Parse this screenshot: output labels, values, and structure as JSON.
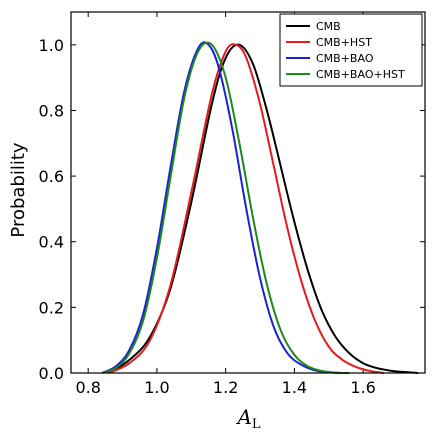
{
  "chart_data": {
    "type": "line",
    "ylabel": "Probability",
    "xlabel_main": "A",
    "xlabel_sub": "L",
    "xlim": [
      0.75,
      1.78
    ],
    "ylim": [
      0.0,
      1.1
    ],
    "x_ticks": [
      0.8,
      1.0,
      1.2,
      1.4,
      1.6
    ],
    "x_tick_labels": [
      "0.8",
      "1.0",
      "1.2",
      "1.4",
      "1.6"
    ],
    "y_ticks": [
      0.0,
      0.2,
      0.4,
      0.6,
      0.8,
      1.0
    ],
    "y_tick_labels": [
      "0.0",
      "0.2",
      "0.4",
      "0.6",
      "0.8",
      "1.0"
    ],
    "legend_position": "top-right",
    "series": [
      {
        "name": "CMB",
        "color": "#000000",
        "x": [
          0.86,
          0.92,
          0.98,
          1.04,
          1.1,
          1.16,
          1.2,
          1.24,
          1.28,
          1.32,
          1.36,
          1.4,
          1.44,
          1.48,
          1.52,
          1.56,
          1.6,
          1.64,
          1.68,
          1.72,
          1.76
        ],
        "y": [
          0.0,
          0.04,
          0.11,
          0.26,
          0.52,
          0.82,
          0.96,
          1.0,
          0.94,
          0.8,
          0.63,
          0.46,
          0.31,
          0.19,
          0.11,
          0.06,
          0.03,
          0.015,
          0.007,
          0.003,
          0.0
        ]
      },
      {
        "name": "CMB+HST",
        "color": "#e41a1c",
        "x": [
          0.86,
          0.92,
          0.98,
          1.04,
          1.1,
          1.16,
          1.2,
          1.23,
          1.26,
          1.3,
          1.34,
          1.38,
          1.42,
          1.46,
          1.5,
          1.54,
          1.58,
          1.62,
          1.66
        ],
        "y": [
          0.0,
          0.03,
          0.1,
          0.27,
          0.55,
          0.85,
          0.98,
          1.0,
          0.96,
          0.82,
          0.63,
          0.44,
          0.28,
          0.16,
          0.08,
          0.04,
          0.018,
          0.006,
          0.0
        ]
      },
      {
        "name": "CMB+BAO",
        "color": "#1f1fd6",
        "x": [
          0.84,
          0.88,
          0.92,
          0.96,
          1.0,
          1.04,
          1.08,
          1.12,
          1.15,
          1.18,
          1.22,
          1.26,
          1.3,
          1.34,
          1.38,
          1.42,
          1.46,
          1.5,
          1.54
        ],
        "y": [
          0.0,
          0.02,
          0.07,
          0.18,
          0.38,
          0.63,
          0.86,
          0.99,
          1.0,
          0.93,
          0.74,
          0.5,
          0.29,
          0.14,
          0.06,
          0.025,
          0.008,
          0.002,
          0.0
        ]
      },
      {
        "name": "CMB+BAO+HST",
        "color": "#1b8a1b",
        "x": [
          0.84,
          0.88,
          0.92,
          0.96,
          1.0,
          1.04,
          1.08,
          1.12,
          1.16,
          1.2,
          1.24,
          1.28,
          1.32,
          1.36,
          1.4,
          1.44,
          1.48,
          1.52,
          1.56
        ],
        "y": [
          0.0,
          0.015,
          0.06,
          0.16,
          0.35,
          0.6,
          0.84,
          0.98,
          1.0,
          0.9,
          0.7,
          0.47,
          0.27,
          0.13,
          0.055,
          0.02,
          0.006,
          0.001,
          0.0
        ]
      }
    ]
  }
}
